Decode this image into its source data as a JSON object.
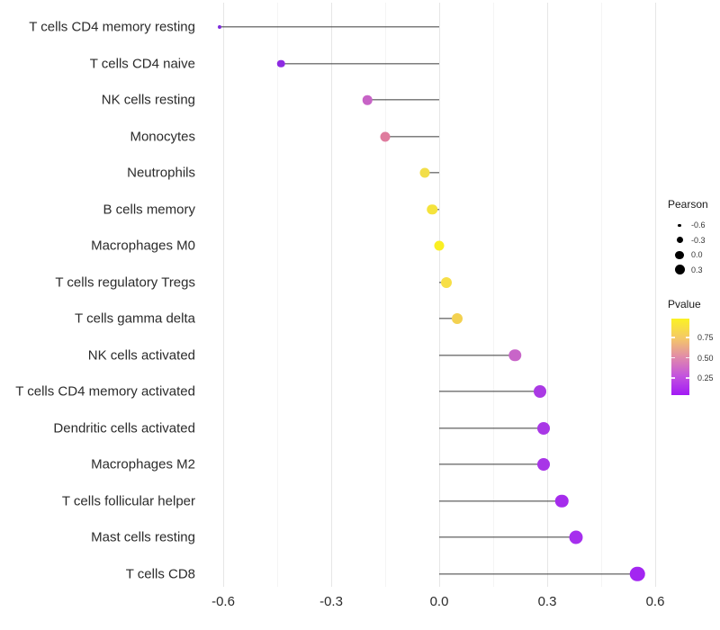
{
  "chart_data": {
    "type": "lollipop",
    "orientation": "horizontal",
    "xlabel": "",
    "ylabel": "",
    "x_axis": {
      "tick_labels": [
        "-0.6",
        "-0.3",
        "0.0",
        "0.3",
        "0.6"
      ],
      "tick_values": [
        -0.6,
        -0.3,
        0.0,
        0.3,
        0.6
      ],
      "minor_grid_values": [
        -0.45,
        -0.15,
        0.15,
        0.45
      ],
      "xlim": [
        -0.685,
        0.62
      ],
      "grid": "vertical-only"
    },
    "size_encoding": "Pearson",
    "color_encoding": "Pvalue",
    "points": [
      {
        "label": "T cells CD4 memory resting",
        "pearson": -0.61,
        "color": "#7e2cdc",
        "diameter": 4
      },
      {
        "label": "T cells CD4 naive",
        "pearson": -0.44,
        "color": "#8e2be2",
        "diameter": 8.5
      },
      {
        "label": "NK cells resting",
        "pearson": -0.2,
        "color": "#c763c6",
        "diameter": 10.5
      },
      {
        "label": "Monocytes",
        "pearson": -0.15,
        "color": "#df7c9e",
        "diameter": 11
      },
      {
        "label": "Neutrophils",
        "pearson": -0.04,
        "color": "#f2de49",
        "diameter": 11
      },
      {
        "label": "B cells memory",
        "pearson": -0.02,
        "color": "#f5e33c",
        "diameter": 11.5
      },
      {
        "label": "Macrophages M0",
        "pearson": 0.0,
        "color": "#faef22",
        "diameter": 11
      },
      {
        "label": "T cells regulatory  Tregs",
        "pearson": 0.02,
        "color": "#f7df47",
        "diameter": 12
      },
      {
        "label": "T cells gamma delta",
        "pearson": 0.05,
        "color": "#f3d150",
        "diameter": 12
      },
      {
        "label": "NK cells activated",
        "pearson": 0.21,
        "color": "#c865c8",
        "diameter": 13.5
      },
      {
        "label": "T cells CD4 memory activated",
        "pearson": 0.28,
        "color": "#aa3ae4",
        "diameter": 14
      },
      {
        "label": "Dendritic cells activated",
        "pearson": 0.29,
        "color": "#a938e6",
        "diameter": 14
      },
      {
        "label": "Macrophages M2",
        "pearson": 0.29,
        "color": "#a835e7",
        "diameter": 14
      },
      {
        "label": "T cells follicular helper",
        "pearson": 0.34,
        "color": "#a52cec",
        "diameter": 14.5
      },
      {
        "label": "Mast cells resting",
        "pearson": 0.38,
        "color": "#a62fee",
        "diameter": 15
      },
      {
        "label": "T cells CD8",
        "pearson": 0.55,
        "color": "#a326f1",
        "diameter": 16.5
      }
    ]
  },
  "legend": {
    "pearson": {
      "title": "Pearson",
      "items": [
        {
          "label": "-0.6",
          "diameter": 3.5
        },
        {
          "label": "-0.3",
          "diameter": 7
        },
        {
          "label": "0.0",
          "diameter": 9.5
        },
        {
          "label": "0.3",
          "diameter": 11
        }
      ]
    },
    "pvalue": {
      "title": "Pvalue",
      "tick_labels": [
        "0.75",
        "0.50",
        "0.25"
      ],
      "gradient_top_color": "#fbf224",
      "gradient_mid_color": "#e18ba9",
      "gradient_bottom_color": "#a21af5"
    }
  }
}
